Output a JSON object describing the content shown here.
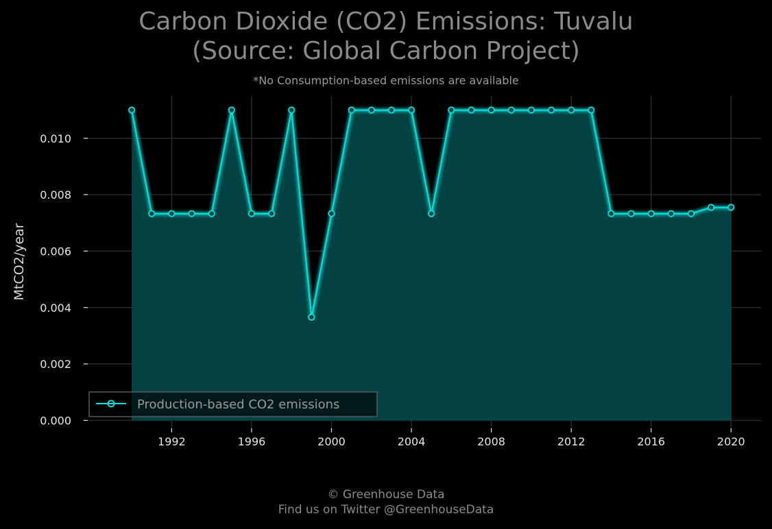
{
  "header": {
    "title_line1": "Carbon Dioxide (CO2) Emissions: Tuvalu",
    "title_line2": "(Source: Global Carbon Project)",
    "subtitle": "*No Consumption-based emissions are available"
  },
  "footer": {
    "line1": "© Greenhouse Data",
    "line2": "Find us on Twitter @GreenhouseData"
  },
  "colors": {
    "background": "#000000",
    "series": "#00e5e0",
    "fill": "#044344",
    "grid": "#2b2b2b"
  },
  "chart_data": {
    "type": "area",
    "title": "Carbon Dioxide (CO2) Emissions: Tuvalu (Source: Global Carbon Project)",
    "subtitle": "*No Consumption-based emissions are available",
    "xlabel": "",
    "ylabel": "MtCO2/year",
    "xlim": [
      1987.8,
      2021.5
    ],
    "ylim": [
      -0.00028,
      0.0115
    ],
    "x_ticks": [
      1992,
      1996,
      2000,
      2004,
      2008,
      2012,
      2016,
      2020
    ],
    "y_ticks": [
      0.0,
      0.002,
      0.004,
      0.006,
      0.008,
      0.01
    ],
    "y_tick_labels": [
      "0.000",
      "0.002",
      "0.004",
      "0.006",
      "0.008",
      "0.010"
    ],
    "grid": true,
    "legend_position": "lower-left",
    "series": [
      {
        "name": "Production-based CO2 emissions",
        "color": "#00e5e0",
        "x": [
          1990,
          1991,
          1992,
          1993,
          1994,
          1995,
          1996,
          1997,
          1998,
          1999,
          2000,
          2001,
          2002,
          2003,
          2004,
          2005,
          2006,
          2007,
          2008,
          2009,
          2010,
          2011,
          2012,
          2013,
          2014,
          2015,
          2016,
          2017,
          2018,
          2019,
          2020
        ],
        "y": [
          0.011,
          0.00733,
          0.00733,
          0.00733,
          0.00733,
          0.011,
          0.00733,
          0.00733,
          0.011,
          0.00366,
          0.00733,
          0.011,
          0.011,
          0.011,
          0.011,
          0.00733,
          0.011,
          0.011,
          0.011,
          0.011,
          0.011,
          0.011,
          0.011,
          0.011,
          0.00733,
          0.00733,
          0.00733,
          0.00733,
          0.00733,
          0.00755,
          0.00755
        ]
      }
    ]
  }
}
